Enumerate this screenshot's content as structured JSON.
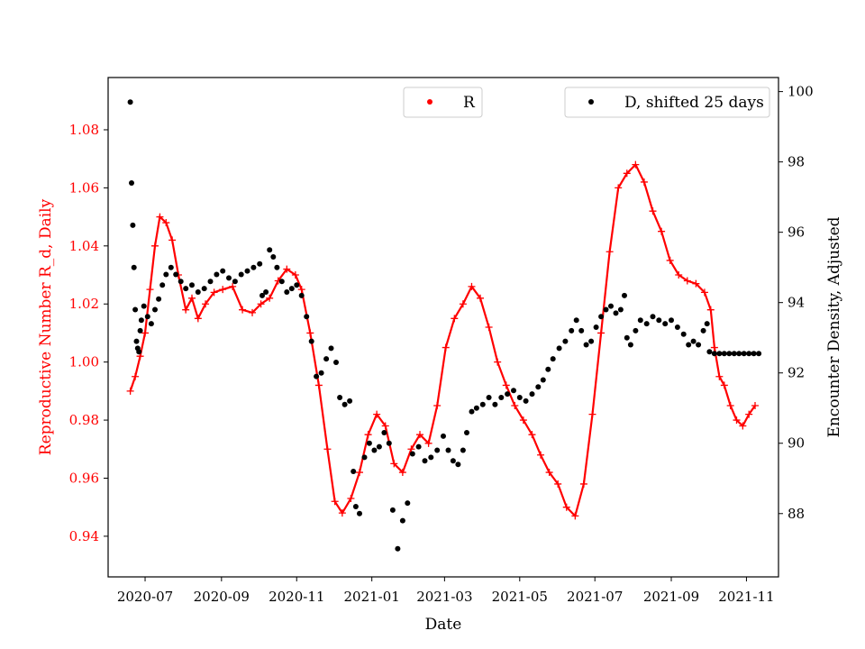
{
  "chart_data": {
    "type": "line+scatter",
    "x_axis": {
      "label": "Date",
      "range": [
        "2020-06-01",
        "2021-11-27"
      ],
      "ticks": [
        {
          "label": "2020-07",
          "date": "2020-07-01"
        },
        {
          "label": "2020-09",
          "date": "2020-09-01"
        },
        {
          "label": "2020-11",
          "date": "2020-11-01"
        },
        {
          "label": "2021-01",
          "date": "2021-01-01"
        },
        {
          "label": "2021-03",
          "date": "2021-03-01"
        },
        {
          "label": "2021-05",
          "date": "2021-05-01"
        },
        {
          "label": "2021-07",
          "date": "2021-07-01"
        },
        {
          "label": "2021-09",
          "date": "2021-09-01"
        },
        {
          "label": "2021-11",
          "date": "2021-11-01"
        }
      ]
    },
    "left_axis": {
      "label": "Reproductive Number R_d, Daily",
      "color": "#ff0000",
      "ylim": [
        0.926,
        1.098
      ],
      "ticks": [
        "0.94",
        "0.96",
        "0.98",
        "1.00",
        "1.02",
        "1.04",
        "1.06",
        "1.08"
      ]
    },
    "right_axis": {
      "label": "Encounter Density, Adjusted",
      "color": "#000000",
      "ylim": [
        86.2,
        100.4
      ],
      "ticks": [
        "88",
        "90",
        "92",
        "94",
        "96",
        "98",
        "100"
      ]
    },
    "legend_R": {
      "label": "R",
      "color": "#ff0000",
      "placement": "top-center"
    },
    "legend_D": {
      "label": "D, shifted 25 days",
      "color": "#000000",
      "placement": "top-right"
    },
    "series": [
      {
        "name": "R",
        "axis": "left",
        "color": "#ff0000",
        "points": [
          [
            "2020-06-19",
            0.99
          ],
          [
            "2020-06-23",
            0.995
          ],
          [
            "2020-06-27",
            1.002
          ],
          [
            "2020-07-01",
            1.01
          ],
          [
            "2020-07-05",
            1.025
          ],
          [
            "2020-07-09",
            1.04
          ],
          [
            "2020-07-13",
            1.05
          ],
          [
            "2020-07-18",
            1.048
          ],
          [
            "2020-07-23",
            1.042
          ],
          [
            "2020-07-28",
            1.03
          ],
          [
            "2020-08-03",
            1.018
          ],
          [
            "2020-08-08",
            1.022
          ],
          [
            "2020-08-13",
            1.015
          ],
          [
            "2020-08-19",
            1.02
          ],
          [
            "2020-08-26",
            1.024
          ],
          [
            "2020-09-02",
            1.025
          ],
          [
            "2020-09-10",
            1.026
          ],
          [
            "2020-09-18",
            1.018
          ],
          [
            "2020-09-26",
            1.017
          ],
          [
            "2020-10-03",
            1.02
          ],
          [
            "2020-10-10",
            1.022
          ],
          [
            "2020-10-17",
            1.028
          ],
          [
            "2020-10-24",
            1.032
          ],
          [
            "2020-10-31",
            1.03
          ],
          [
            "2020-11-05",
            1.025
          ],
          [
            "2020-11-12",
            1.01
          ],
          [
            "2020-11-19",
            0.992
          ],
          [
            "2020-11-26",
            0.97
          ],
          [
            "2020-12-02",
            0.952
          ],
          [
            "2020-12-08",
            0.948
          ],
          [
            "2020-12-15",
            0.953
          ],
          [
            "2020-12-22",
            0.962
          ],
          [
            "2020-12-29",
            0.975
          ],
          [
            "2021-01-05",
            0.982
          ],
          [
            "2021-01-12",
            0.978
          ],
          [
            "2021-01-19",
            0.965
          ],
          [
            "2021-01-26",
            0.962
          ],
          [
            "2021-02-02",
            0.97
          ],
          [
            "2021-02-09",
            0.975
          ],
          [
            "2021-02-16",
            0.972
          ],
          [
            "2021-02-23",
            0.985
          ],
          [
            "2021-03-02",
            1.005
          ],
          [
            "2021-03-09",
            1.015
          ],
          [
            "2021-03-16",
            1.02
          ],
          [
            "2021-03-23",
            1.026
          ],
          [
            "2021-03-30",
            1.022
          ],
          [
            "2021-04-06",
            1.012
          ],
          [
            "2021-04-13",
            1.0
          ],
          [
            "2021-04-20",
            0.992
          ],
          [
            "2021-04-27",
            0.985
          ],
          [
            "2021-05-04",
            0.98
          ],
          [
            "2021-05-11",
            0.975
          ],
          [
            "2021-05-18",
            0.968
          ],
          [
            "2021-05-25",
            0.962
          ],
          [
            "2021-06-01",
            0.958
          ],
          [
            "2021-06-08",
            0.95
          ],
          [
            "2021-06-15",
            0.947
          ],
          [
            "2021-06-22",
            0.958
          ],
          [
            "2021-06-29",
            0.982
          ],
          [
            "2021-07-06",
            1.01
          ],
          [
            "2021-07-13",
            1.038
          ],
          [
            "2021-07-20",
            1.06
          ],
          [
            "2021-07-27",
            1.065
          ],
          [
            "2021-08-03",
            1.068
          ],
          [
            "2021-08-10",
            1.062
          ],
          [
            "2021-08-17",
            1.052
          ],
          [
            "2021-08-24",
            1.045
          ],
          [
            "2021-08-31",
            1.035
          ],
          [
            "2021-09-07",
            1.03
          ],
          [
            "2021-09-14",
            1.028
          ],
          [
            "2021-09-21",
            1.027
          ],
          [
            "2021-09-28",
            1.024
          ],
          [
            "2021-10-03",
            1.018
          ],
          [
            "2021-10-06",
            1.005
          ],
          [
            "2021-10-10",
            0.995
          ],
          [
            "2021-10-14",
            0.992
          ],
          [
            "2021-10-19",
            0.985
          ],
          [
            "2021-10-24",
            0.98
          ],
          [
            "2021-10-29",
            0.978
          ],
          [
            "2021-11-03",
            0.982
          ],
          [
            "2021-11-08",
            0.985
          ]
        ]
      },
      {
        "name": "D, shifted 25 days",
        "axis": "right",
        "color": "#000000",
        "points": [
          [
            "2020-06-19",
            99.7
          ],
          [
            "2020-06-20",
            97.4
          ],
          [
            "2020-06-21",
            96.2
          ],
          [
            "2020-06-22",
            95.0
          ],
          [
            "2020-06-23",
            93.8
          ],
          [
            "2020-06-24",
            92.9
          ],
          [
            "2020-06-25",
            92.7
          ],
          [
            "2020-06-26",
            92.6
          ],
          [
            "2020-06-27",
            93.2
          ],
          [
            "2020-06-28",
            93.5
          ],
          [
            "2020-06-30",
            93.9
          ],
          [
            "2020-07-03",
            93.6
          ],
          [
            "2020-07-06",
            93.4
          ],
          [
            "2020-07-09",
            93.8
          ],
          [
            "2020-07-12",
            94.1
          ],
          [
            "2020-07-15",
            94.5
          ],
          [
            "2020-07-18",
            94.8
          ],
          [
            "2020-07-22",
            95.0
          ],
          [
            "2020-07-26",
            94.8
          ],
          [
            "2020-07-30",
            94.6
          ],
          [
            "2020-08-03",
            94.4
          ],
          [
            "2020-08-08",
            94.5
          ],
          [
            "2020-08-13",
            94.3
          ],
          [
            "2020-08-18",
            94.4
          ],
          [
            "2020-08-23",
            94.6
          ],
          [
            "2020-08-28",
            94.8
          ],
          [
            "2020-09-02",
            94.9
          ],
          [
            "2020-09-07",
            94.7
          ],
          [
            "2020-09-12",
            94.6
          ],
          [
            "2020-09-17",
            94.8
          ],
          [
            "2020-09-22",
            94.9
          ],
          [
            "2020-09-27",
            95.0
          ],
          [
            "2020-10-02",
            95.1
          ],
          [
            "2020-10-04",
            94.2
          ],
          [
            "2020-10-07",
            94.3
          ],
          [
            "2020-10-10",
            95.5
          ],
          [
            "2020-10-13",
            95.3
          ],
          [
            "2020-10-16",
            95.0
          ],
          [
            "2020-10-20",
            94.6
          ],
          [
            "2020-10-24",
            94.3
          ],
          [
            "2020-10-28",
            94.4
          ],
          [
            "2020-11-01",
            94.5
          ],
          [
            "2020-11-05",
            94.2
          ],
          [
            "2020-11-09",
            93.6
          ],
          [
            "2020-11-13",
            92.9
          ],
          [
            "2020-11-17",
            91.9
          ],
          [
            "2020-11-21",
            92.0
          ],
          [
            "2020-11-25",
            92.4
          ],
          [
            "2020-11-29",
            92.7
          ],
          [
            "2020-12-03",
            92.3
          ],
          [
            "2020-12-06",
            91.3
          ],
          [
            "2020-12-10",
            91.1
          ],
          [
            "2020-12-14",
            91.2
          ],
          [
            "2020-12-17",
            89.2
          ],
          [
            "2020-12-19",
            88.2
          ],
          [
            "2020-12-22",
            88.0
          ],
          [
            "2020-12-26",
            89.6
          ],
          [
            "2020-12-30",
            90.0
          ],
          [
            "2021-01-03",
            89.8
          ],
          [
            "2021-01-07",
            89.9
          ],
          [
            "2021-01-11",
            90.3
          ],
          [
            "2021-01-15",
            90.0
          ],
          [
            "2021-01-18",
            88.1
          ],
          [
            "2021-01-22",
            87.0
          ],
          [
            "2021-01-26",
            87.8
          ],
          [
            "2021-01-30",
            88.3
          ],
          [
            "2021-02-03",
            89.7
          ],
          [
            "2021-02-08",
            89.9
          ],
          [
            "2021-02-13",
            89.5
          ],
          [
            "2021-02-18",
            89.6
          ],
          [
            "2021-02-23",
            89.8
          ],
          [
            "2021-02-28",
            90.2
          ],
          [
            "2021-03-04",
            89.8
          ],
          [
            "2021-03-08",
            89.5
          ],
          [
            "2021-03-12",
            89.4
          ],
          [
            "2021-03-16",
            89.8
          ],
          [
            "2021-03-19",
            90.3
          ],
          [
            "2021-03-23",
            90.9
          ],
          [
            "2021-03-27",
            91.0
          ],
          [
            "2021-04-01",
            91.1
          ],
          [
            "2021-04-06",
            91.3
          ],
          [
            "2021-04-11",
            91.1
          ],
          [
            "2021-04-16",
            91.3
          ],
          [
            "2021-04-21",
            91.4
          ],
          [
            "2021-04-26",
            91.5
          ],
          [
            "2021-05-01",
            91.3
          ],
          [
            "2021-05-06",
            91.2
          ],
          [
            "2021-05-11",
            91.4
          ],
          [
            "2021-05-16",
            91.6
          ],
          [
            "2021-05-20",
            91.8
          ],
          [
            "2021-05-24",
            92.1
          ],
          [
            "2021-05-28",
            92.4
          ],
          [
            "2021-06-02",
            92.7
          ],
          [
            "2021-06-07",
            92.9
          ],
          [
            "2021-06-12",
            93.2
          ],
          [
            "2021-06-16",
            93.5
          ],
          [
            "2021-06-20",
            93.2
          ],
          [
            "2021-06-24",
            92.8
          ],
          [
            "2021-06-28",
            92.9
          ],
          [
            "2021-07-02",
            93.3
          ],
          [
            "2021-07-06",
            93.6
          ],
          [
            "2021-07-10",
            93.8
          ],
          [
            "2021-07-14",
            93.9
          ],
          [
            "2021-07-18",
            93.7
          ],
          [
            "2021-07-22",
            93.8
          ],
          [
            "2021-07-25",
            94.2
          ],
          [
            "2021-07-27",
            93.0
          ],
          [
            "2021-07-30",
            92.8
          ],
          [
            "2021-08-03",
            93.2
          ],
          [
            "2021-08-07",
            93.5
          ],
          [
            "2021-08-12",
            93.4
          ],
          [
            "2021-08-17",
            93.6
          ],
          [
            "2021-08-22",
            93.5
          ],
          [
            "2021-08-27",
            93.4
          ],
          [
            "2021-09-01",
            93.5
          ],
          [
            "2021-09-06",
            93.3
          ],
          [
            "2021-09-11",
            93.1
          ],
          [
            "2021-09-15",
            92.8
          ],
          [
            "2021-09-19",
            92.9
          ],
          [
            "2021-09-23",
            92.8
          ],
          [
            "2021-09-27",
            93.2
          ],
          [
            "2021-09-30",
            93.4
          ],
          [
            "2021-10-02",
            92.6
          ],
          [
            "2021-10-06",
            92.55
          ],
          [
            "2021-10-10",
            92.55
          ],
          [
            "2021-10-14",
            92.55
          ],
          [
            "2021-10-18",
            92.55
          ],
          [
            "2021-10-22",
            92.55
          ],
          [
            "2021-10-26",
            92.55
          ],
          [
            "2021-10-30",
            92.55
          ],
          [
            "2021-11-03",
            92.55
          ],
          [
            "2021-11-07",
            92.55
          ],
          [
            "2021-11-11",
            92.55
          ]
        ]
      }
    ]
  }
}
